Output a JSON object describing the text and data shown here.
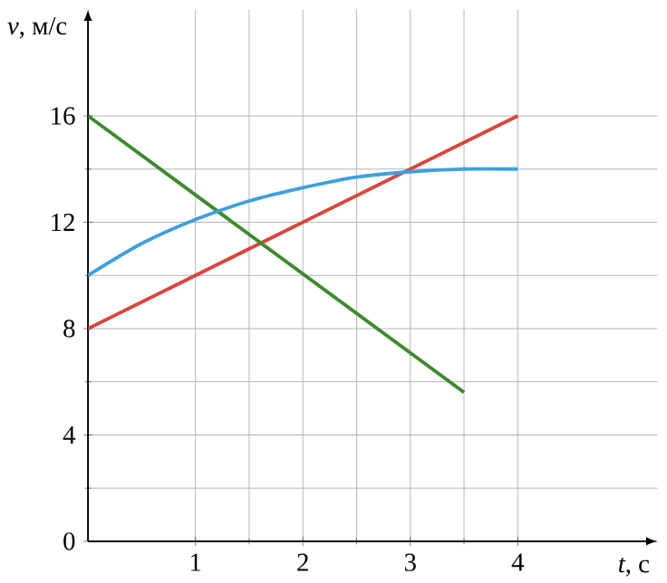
{
  "chart_data": {
    "type": "line",
    "xlabel": "*t*, с",
    "ylabel": "*v*, м/с",
    "xlim": [
      0,
      5.3
    ],
    "ylim": [
      0,
      20
    ],
    "xticks": [
      1,
      2,
      3,
      4
    ],
    "yticks": [
      0,
      4,
      8,
      12,
      16
    ],
    "grid": true,
    "marker": "none",
    "line_style": "solid",
    "series": [
      {
        "color": "#d9463a",
        "x": [
          0,
          4
        ],
        "values": [
          8,
          16
        ]
      },
      {
        "color": "#3c8a2e",
        "x": [
          0,
          3.5
        ],
        "values": [
          16,
          5.6
        ]
      },
      {
        "color": "#3fa0db",
        "x": [
          0,
          0.5,
          1,
          1.5,
          2,
          2.5,
          3,
          3.5,
          4
        ],
        "values": [
          10,
          11.2,
          12.1,
          12.8,
          13.3,
          13.7,
          13.9,
          14,
          14
        ]
      }
    ]
  }
}
